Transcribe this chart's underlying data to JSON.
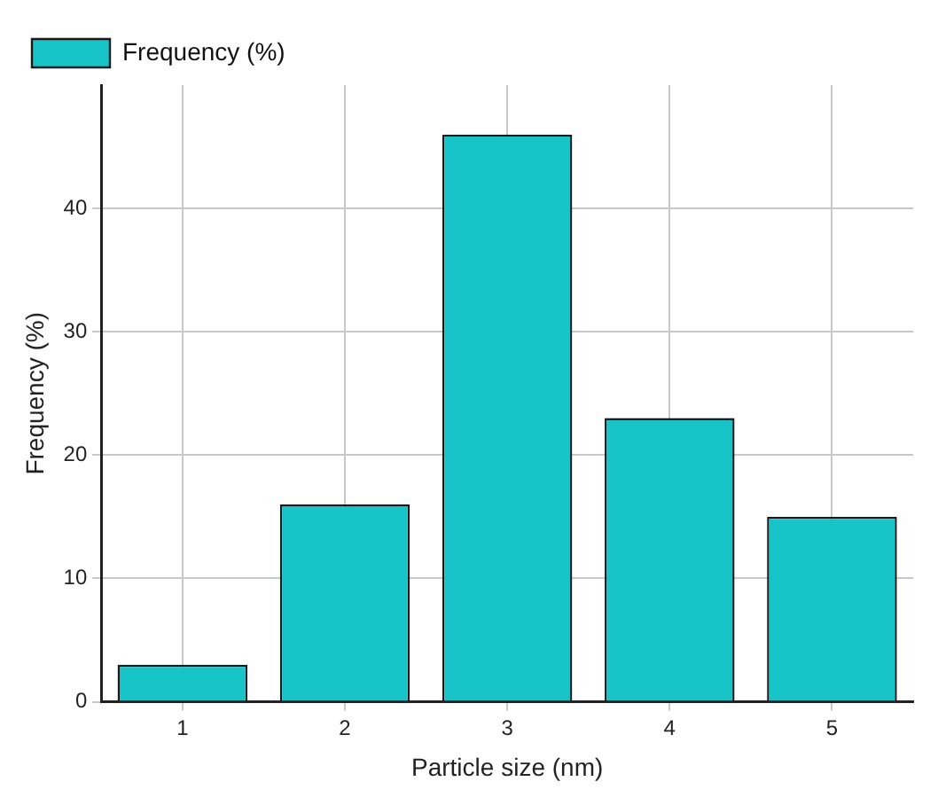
{
  "chart_data": {
    "type": "bar",
    "xlabel": "Particle size (nm)",
    "ylabel": "Frequency (%)",
    "categories": [
      "1",
      "2",
      "3",
      "4",
      "5"
    ],
    "series": [
      {
        "name": "Frequency (%)",
        "color": "#17c4c8",
        "values": [
          3,
          16,
          46,
          23,
          15
        ]
      }
    ],
    "ylim": [
      0,
      50
    ],
    "yticks": [
      0,
      10,
      20,
      30,
      40
    ],
    "grid": true,
    "legend": "top left"
  }
}
